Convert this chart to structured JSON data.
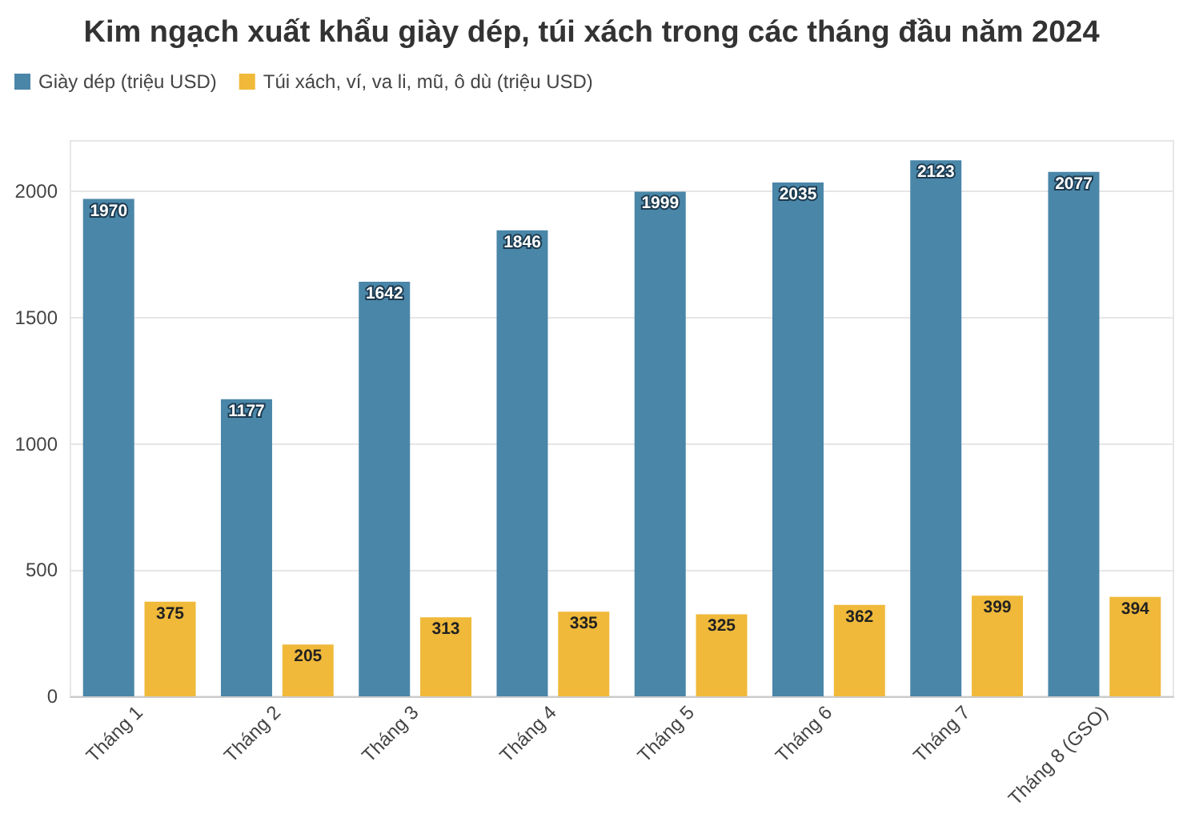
{
  "chart_data": {
    "type": "bar",
    "title": "Kim ngạch xuất khẩu giày dép, túi xách trong các tháng đầu năm 2024",
    "categories": [
      "Tháng 1",
      "Tháng 2",
      "Tháng 3",
      "Tháng 4",
      "Tháng 5",
      "Tháng 6",
      "Tháng 7",
      "Tháng 8 (GSO)"
    ],
    "series": [
      {
        "name": "Giày dép (triệu USD)",
        "color": "#4a86a8",
        "values": [
          1970,
          1177,
          1642,
          1846,
          1999,
          2035,
          2123,
          2077
        ]
      },
      {
        "name": "Túi xách, ví, va li, mũ, ô dù (triệu USD)",
        "color": "#f0b93a",
        "values": [
          375,
          205,
          313,
          335,
          325,
          362,
          399,
          394
        ]
      }
    ],
    "ylim": [
      0,
      2200
    ],
    "yticks": [
      0,
      500,
      1000,
      1500,
      2000
    ],
    "grid": "y",
    "legend": "top left",
    "data_labels": true
  }
}
